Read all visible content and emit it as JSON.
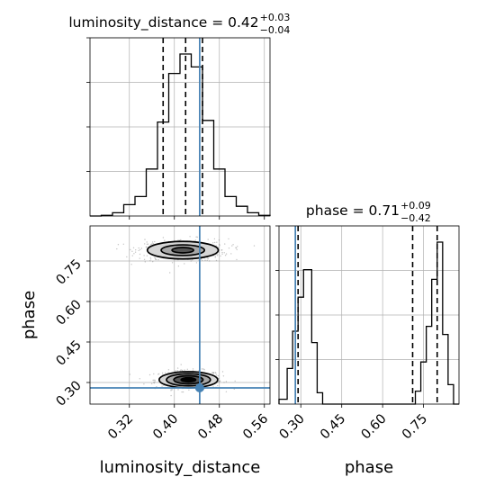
{
  "chart_data": {
    "type": "corner",
    "colors": {
      "hist": "#000000",
      "quantile": "#000000",
      "truth": "#4682b4",
      "grid": "#b0b0b0",
      "samples": "#7f7f7f",
      "contour_fill_dark": "#000000",
      "contour_fill_mid": "#555555",
      "contour_fill_light": "#a8a8a8",
      "contour_fill_faint": "#d6d6d6"
    },
    "grid": true,
    "parameters": [
      {
        "name": "luminosity_distance",
        "xlabel": "luminosity_distance",
        "title_prefix": "luminosity_distance = 0.42",
        "title_sup": "+0.03",
        "title_sub": "−0.04",
        "median": 0.42,
        "quantiles": [
          0.38,
          0.42,
          0.45
        ],
        "truth": 0.445,
        "range": [
          0.25,
          0.57
        ],
        "ticks": [
          0.32,
          0.4,
          0.48,
          0.56
        ],
        "tick_labels": [
          "0.32",
          "0.40",
          "0.48",
          "0.56"
        ],
        "hist_bins": [
          0.25,
          0.27,
          0.29,
          0.31,
          0.33,
          0.35,
          0.37,
          0.39,
          0.41,
          0.43,
          0.45,
          0.47,
          0.49,
          0.51,
          0.53,
          0.55,
          0.57
        ],
        "hist_density": [
          0.0,
          0.004,
          0.02,
          0.07,
          0.12,
          0.29,
          0.58,
          0.88,
          1.0,
          0.92,
          0.59,
          0.29,
          0.12,
          0.06,
          0.02,
          0.004
        ],
        "hist_ylim": [
          0,
          1.1
        ]
      },
      {
        "name": "phase",
        "xlabel": "phase",
        "ylabel": "phase",
        "title_prefix": "phase = 0.71",
        "title_sup": "+0.09",
        "title_sub": "−0.42",
        "median": 0.71,
        "quantiles": [
          0.29,
          0.71,
          0.8
        ],
        "truth": 0.28,
        "range": [
          0.22,
          0.88
        ],
        "ticks": [
          0.3,
          0.45,
          0.6,
          0.75
        ],
        "tick_labels": [
          "0.30",
          "0.45",
          "0.60",
          "0.75"
        ],
        "hist_bins": [
          0.22,
          0.25,
          0.27,
          0.29,
          0.31,
          0.34,
          0.36,
          0.38,
          0.4,
          0.42,
          0.44,
          0.46,
          0.48,
          0.5,
          0.52,
          0.54,
          0.56,
          0.58,
          0.6,
          0.62,
          0.64,
          0.66,
          0.68,
          0.7,
          0.72,
          0.74,
          0.76,
          0.78,
          0.8,
          0.82,
          0.84,
          0.86,
          0.88
        ],
        "hist_density": [
          0.03,
          0.22,
          0.45,
          0.66,
          0.83,
          0.38,
          0.07,
          0.0,
          0.0,
          0.0,
          0.0,
          0.0,
          0.0,
          0.0,
          0.0,
          0.0,
          0.0,
          0.0,
          0.0,
          0.0,
          0.0,
          0.0,
          0.0,
          0.0,
          0.08,
          0.26,
          0.48,
          0.77,
          1.0,
          0.43,
          0.12,
          0.0
        ],
        "hist_ylim": [
          0,
          1.1
        ]
      }
    ],
    "joint": {
      "x_param": "luminosity_distance",
      "y_param": "phase",
      "truth": [
        0.445,
        0.28
      ],
      "modes": [
        {
          "center": [
            0.425,
            0.31
          ],
          "sd": [
            0.026,
            0.015
          ],
          "levels": [
            {
              "k": 0.5,
              "fill": "contour_fill_dark"
            },
            {
              "k": 1.0,
              "fill": "contour_fill_mid"
            },
            {
              "k": 1.5,
              "fill": "contour_fill_light"
            },
            {
              "k": 2.0,
              "fill": "contour_fill_faint"
            }
          ]
        },
        {
          "center": [
            0.415,
            0.79
          ],
          "sd": [
            0.035,
            0.018
          ],
          "levels": [
            {
              "k": 0.55,
              "fill": "contour_fill_mid"
            },
            {
              "k": 1.1,
              "fill": "contour_fill_light"
            },
            {
              "k": 1.8,
              "fill": "contour_fill_faint"
            }
          ]
        }
      ]
    }
  }
}
